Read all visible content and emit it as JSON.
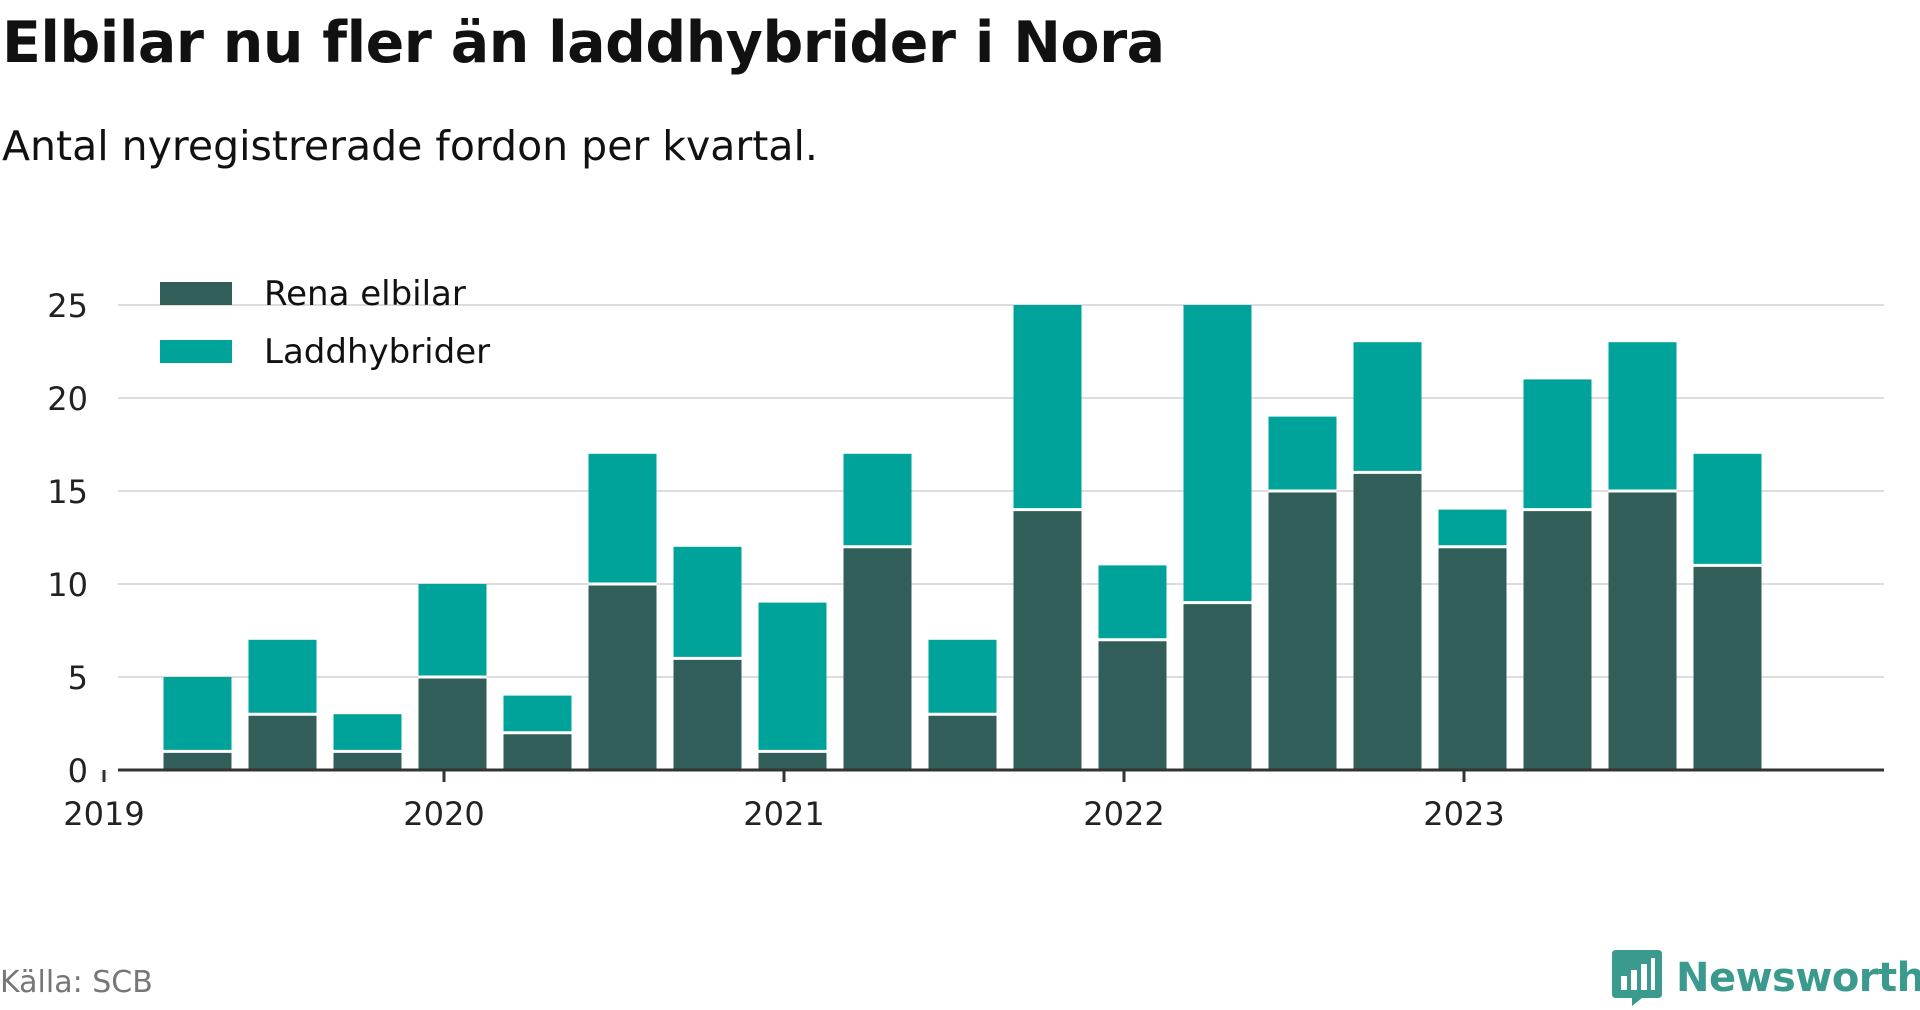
{
  "title": "Elbilar nu fler än laddhybrider i Nora",
  "subtitle": "Antal nyregistrerade fordon per kvartal.",
  "source": "Källa: SCB",
  "brand": "Newsworthy",
  "colors": {
    "rena_elbilar": "#315e58",
    "laddhybrider": "#00a39a",
    "grid": "#dddddd",
    "axis": "#333333",
    "brand": "#3a9a8e"
  },
  "chart_data": {
    "type": "bar",
    "stacked": true,
    "categories": [
      "2019 Q2",
      "2019 Q3",
      "2019 Q4",
      "2020 Q1",
      "2020 Q2",
      "2020 Q3",
      "2020 Q4",
      "2021 Q1",
      "2021 Q2",
      "2021 Q3",
      "2021 Q4",
      "2022 Q1",
      "2022 Q2",
      "2022 Q3",
      "2022 Q4",
      "2023 Q1",
      "2023 Q2",
      "2023 Q3",
      "2023 Q4"
    ],
    "series": [
      {
        "name": "Rena elbilar",
        "values": [
          1,
          3,
          1,
          5,
          2,
          10,
          6,
          1,
          12,
          3,
          14,
          7,
          9,
          15,
          16,
          12,
          14,
          15,
          11
        ]
      },
      {
        "name": "Laddhybrider",
        "values": [
          4,
          4,
          2,
          5,
          2,
          7,
          6,
          8,
          5,
          4,
          11,
          4,
          16,
          4,
          7,
          2,
          7,
          8,
          6
        ]
      }
    ],
    "x_ticks": [
      "2019",
      "2020",
      "2021",
      "2022",
      "2023"
    ],
    "y_ticks": [
      0,
      5,
      10,
      15,
      20,
      25
    ],
    "ylim": [
      0,
      25
    ],
    "grid": true,
    "legend": "top-left"
  }
}
